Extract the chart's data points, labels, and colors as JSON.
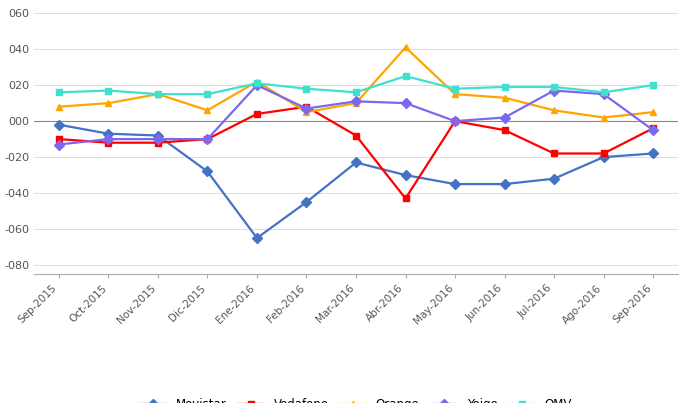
{
  "months": [
    "Sep-2015",
    "Oct-2015",
    "Nov-2015",
    "Dic-2015",
    "Ene-2016",
    "Feb-2016",
    "Mar-2016",
    "Abr-2016",
    "May-2016",
    "Jun-2016",
    "Jul-2016",
    "Ago-2016",
    "Sep-2016"
  ],
  "series": {
    "Movistar": [
      -2,
      -7,
      -8,
      -28,
      -65,
      -45,
      -23,
      -30,
      -35,
      -35,
      -32,
      -20,
      -18
    ],
    "Vodafone": [
      -10,
      -12,
      -12,
      -10,
      4,
      8,
      -8,
      -43,
      0,
      -5,
      -18,
      -18,
      -4
    ],
    "Orange": [
      8,
      10,
      15,
      6,
      22,
      5,
      10,
      41,
      15,
      13,
      6,
      2,
      5
    ],
    "Yoigo": [
      -13,
      -10,
      -10,
      -10,
      20,
      7,
      11,
      10,
      0,
      2,
      17,
      15,
      -5
    ],
    "OMV": [
      16,
      17,
      15,
      15,
      21,
      18,
      16,
      25,
      18,
      19,
      19,
      16,
      20
    ]
  },
  "colors": {
    "Movistar": "#4472C4",
    "Vodafone": "#FF0000",
    "Orange": "#FFA500",
    "Yoigo": "#7B68EE",
    "OMV": "#40E0D0"
  },
  "markers": {
    "Movistar": "D",
    "Vodafone": "s",
    "Orange": "^",
    "Yoigo": "D",
    "OMV": "s"
  },
  "ylim": [
    -85,
    65
  ],
  "yticks": [
    -80,
    -60,
    -40,
    -20,
    0,
    20,
    40,
    60
  ],
  "ytick_labels": [
    "-080",
    "-060",
    "-040",
    "-020",
    "000",
    "020",
    "040",
    "060"
  ],
  "background_color": "#FFFFFF",
  "grid_color": "#D0D0D0",
  "linewidth": 1.6,
  "markersize": 5
}
